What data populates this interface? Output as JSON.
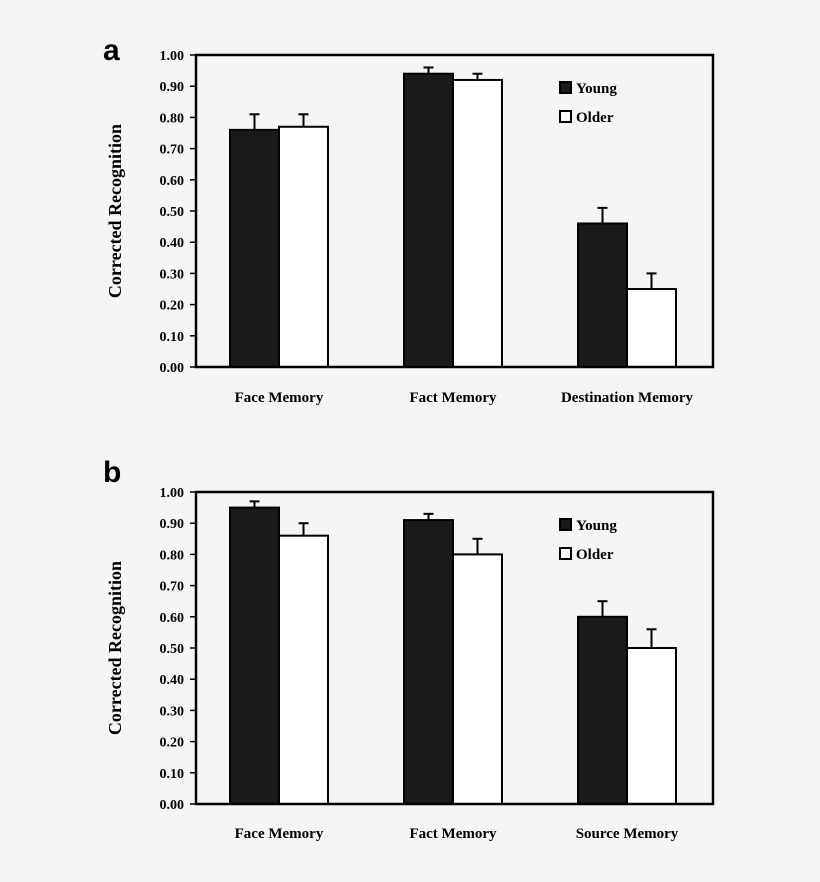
{
  "colors": {
    "young": "#1a1a1a",
    "older": "#ffffff",
    "stroke": "#000000",
    "background": "#f5f5f5"
  },
  "chart_data": [
    {
      "panel": "a",
      "type": "bar",
      "ylabel": "Corrected Recognition",
      "ylim": [
        0,
        1
      ],
      "ytick_step": 0.1,
      "categories": [
        "Face Memory",
        "Fact Memory",
        "Destination Memory"
      ],
      "series": [
        {
          "name": "Young",
          "values": [
            0.76,
            0.94,
            0.46
          ],
          "errors": [
            0.05,
            0.02,
            0.05
          ]
        },
        {
          "name": "Older",
          "values": [
            0.77,
            0.92,
            0.25
          ],
          "errors": [
            0.04,
            0.02,
            0.05
          ]
        }
      ],
      "legend": "top-right"
    },
    {
      "panel": "b",
      "type": "bar",
      "ylabel": "Corrected Recognition",
      "ylim": [
        0,
        1
      ],
      "ytick_step": 0.1,
      "categories": [
        "Face Memory",
        "Fact Memory",
        "Source Memory"
      ],
      "series": [
        {
          "name": "Young",
          "values": [
            0.95,
            0.91,
            0.6
          ],
          "errors": [
            0.02,
            0.02,
            0.05
          ]
        },
        {
          "name": "Older",
          "values": [
            0.86,
            0.8,
            0.5
          ],
          "errors": [
            0.04,
            0.05,
            0.06
          ]
        }
      ],
      "legend": "top-right"
    }
  ]
}
